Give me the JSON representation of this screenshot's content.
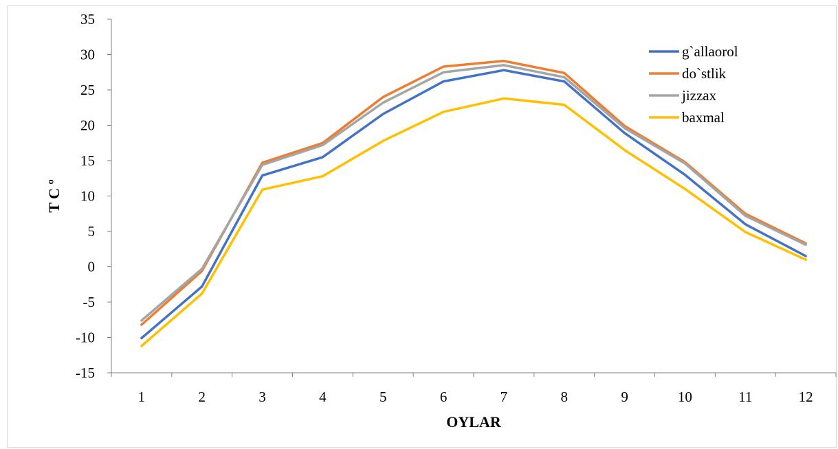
{
  "chart_data": {
    "type": "line",
    "title": "",
    "xlabel": "OYLAR",
    "ylabel": "T C º",
    "categories": [
      "1",
      "2",
      "3",
      "4",
      "5",
      "6",
      "7",
      "8",
      "9",
      "10",
      "11",
      "12"
    ],
    "ylim": [
      -15,
      35
    ],
    "yticks": [
      -15,
      -10,
      -5,
      0,
      5,
      10,
      15,
      20,
      25,
      30,
      35
    ],
    "grid": false,
    "legend_position": "top-right",
    "series": [
      {
        "name": "g`allaorol",
        "color": "#4472C4",
        "values": [
          -10.1,
          -2.8,
          12.9,
          15.5,
          21.6,
          26.2,
          27.8,
          26.2,
          18.9,
          13.0,
          6.0,
          1.5
        ]
      },
      {
        "name": "do`stlik",
        "color": "#ED7D31",
        "values": [
          -8.2,
          -0.6,
          14.7,
          17.5,
          24.0,
          28.3,
          29.1,
          27.4,
          19.9,
          14.8,
          7.5,
          3.3
        ]
      },
      {
        "name": "jizzax",
        "color": "#A5A5A5",
        "values": [
          -7.6,
          -0.3,
          14.4,
          17.2,
          23.2,
          27.5,
          28.5,
          26.8,
          19.6,
          14.6,
          7.2,
          3.1
        ]
      },
      {
        "name": "baxmal",
        "color": "#FFC000",
        "values": [
          -11.2,
          -3.8,
          10.9,
          12.8,
          17.8,
          21.9,
          23.8,
          22.9,
          16.5,
          11.0,
          4.9,
          1.0
        ]
      }
    ]
  }
}
